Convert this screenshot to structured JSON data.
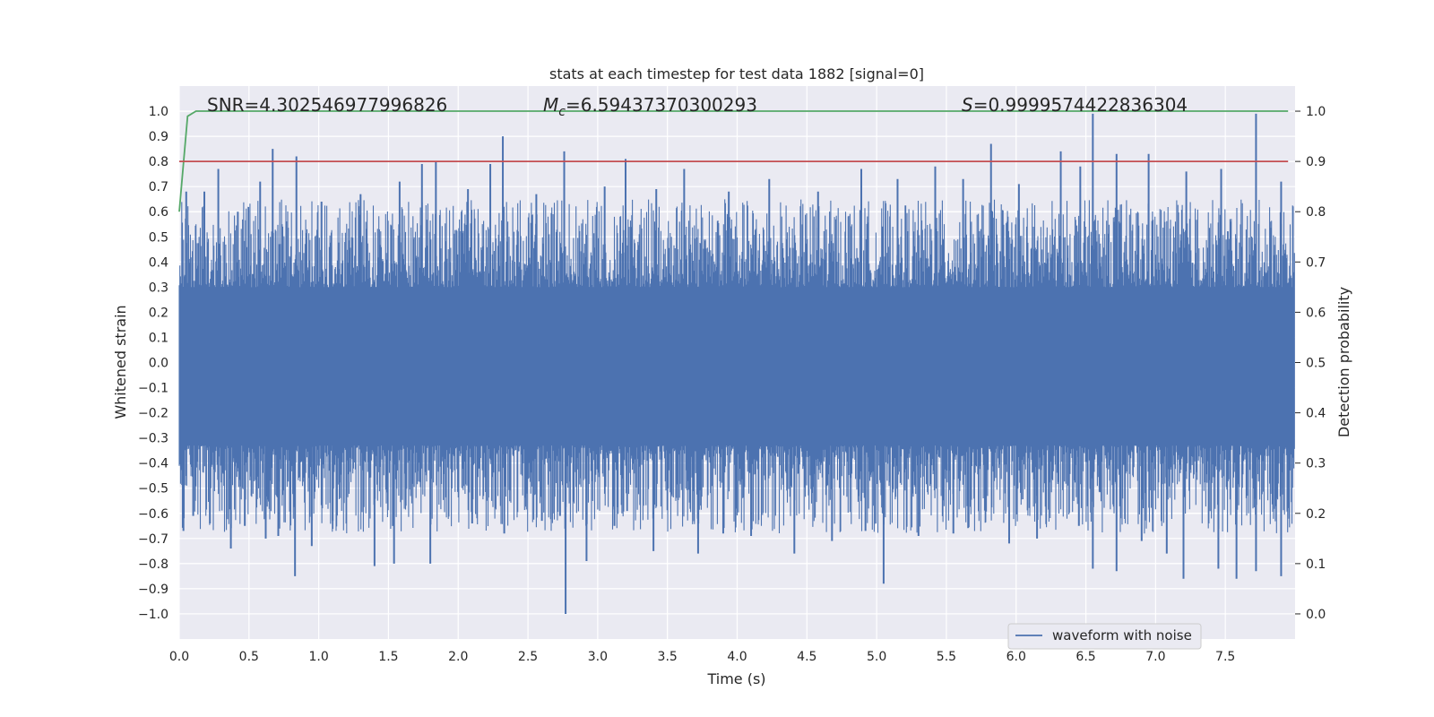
{
  "chart_data": {
    "type": "line",
    "title": "stats at each timestep for test data 1882 [signal=0]",
    "xlabel": "Time (s)",
    "ylabel_left": "Whitened strain",
    "ylabel_right": "Detection probability",
    "xlim": [
      0.0,
      8.0
    ],
    "ylim_left": [
      -1.1,
      1.1
    ],
    "ylim_right": [
      -0.05,
      1.05
    ],
    "x_ticks": [
      "0.0",
      "0.5",
      "1.0",
      "1.5",
      "2.0",
      "2.5",
      "3.0",
      "3.5",
      "4.0",
      "4.5",
      "5.0",
      "5.5",
      "6.0",
      "6.5",
      "7.0",
      "7.5"
    ],
    "y_left_ticks": [
      "1.0",
      "0.9",
      "0.8",
      "0.7",
      "0.6",
      "0.5",
      "0.4",
      "0.3",
      "0.2",
      "0.1",
      "0.0",
      "−0.1",
      "−0.2",
      "−0.3",
      "−0.4",
      "−0.5",
      "−0.6",
      "−0.7",
      "−0.8",
      "−0.9",
      "−1.0"
    ],
    "y_right_ticks": [
      "1.0",
      "0.9",
      "0.8",
      "0.7",
      "0.6",
      "0.5",
      "0.4",
      "0.3",
      "0.2",
      "0.1",
      "0.0"
    ],
    "grid": true,
    "legend_placement": "lower-right",
    "annotations": {
      "snr": "SNR=4.302546977996826",
      "mc_symbol": "M",
      "mc_sub": "c",
      "mc_value": "=6.59437370300293",
      "s_symbol": "S",
      "s_value": "=0.9999574422836304"
    },
    "series": [
      {
        "name": "waveform with noise",
        "axis": "left",
        "color": "#4c72b0",
        "kind": "noise",
        "approx_envelope": [
          -0.48,
          0.45
        ],
        "duration": 8.0
      },
      {
        "axis": "right",
        "color": "#55a868",
        "x": [
          0.0,
          0.06,
          0.12,
          7.95
        ],
        "values": [
          0.8,
          0.99,
          1.0,
          1.0
        ]
      },
      {
        "axis": "right",
        "color": "#c44e52",
        "x": [
          0.0,
          7.95
        ],
        "values": [
          0.9,
          0.9
        ]
      }
    ],
    "noise_spikes_up": [
      [
        0.05,
        0.68
      ],
      [
        0.18,
        0.68
      ],
      [
        0.28,
        0.77
      ],
      [
        0.42,
        0.6
      ],
      [
        0.58,
        0.72
      ],
      [
        0.67,
        0.85
      ],
      [
        0.84,
        0.82
      ],
      [
        1.02,
        0.64
      ],
      [
        1.3,
        0.67
      ],
      [
        1.58,
        0.72
      ],
      [
        1.74,
        0.79
      ],
      [
        1.84,
        0.8
      ],
      [
        2.07,
        0.69
      ],
      [
        2.23,
        0.79
      ],
      [
        2.32,
        0.9
      ],
      [
        2.56,
        0.67
      ],
      [
        2.76,
        0.84
      ],
      [
        3.05,
        0.7
      ],
      [
        3.2,
        0.81
      ],
      [
        3.42,
        0.69
      ],
      [
        3.62,
        0.77
      ],
      [
        3.94,
        0.68
      ],
      [
        4.23,
        0.73
      ],
      [
        4.58,
        0.68
      ],
      [
        4.89,
        0.77
      ],
      [
        5.15,
        0.73
      ],
      [
        5.42,
        0.78
      ],
      [
        5.62,
        0.73
      ],
      [
        5.82,
        0.87
      ],
      [
        6.02,
        0.71
      ],
      [
        6.32,
        0.84
      ],
      [
        6.46,
        0.78
      ],
      [
        6.55,
        0.99
      ],
      [
        6.72,
        0.83
      ],
      [
        6.95,
        0.83
      ],
      [
        7.22,
        0.76
      ],
      [
        7.47,
        0.77
      ],
      [
        7.72,
        0.99
      ],
      [
        7.9,
        0.72
      ]
    ],
    "noise_spikes_down": [
      [
        0.03,
        -0.67
      ],
      [
        0.1,
        -0.61
      ],
      [
        0.22,
        -0.64
      ],
      [
        0.37,
        -0.74
      ],
      [
        0.47,
        -0.65
      ],
      [
        0.62,
        -0.7
      ],
      [
        0.71,
        -0.69
      ],
      [
        0.83,
        -0.85
      ],
      [
        0.95,
        -0.73
      ],
      [
        1.1,
        -0.63
      ],
      [
        1.4,
        -0.81
      ],
      [
        1.54,
        -0.8
      ],
      [
        1.8,
        -0.8
      ],
      [
        2.1,
        -0.64
      ],
      [
        2.33,
        -0.68
      ],
      [
        2.6,
        -0.63
      ],
      [
        2.73,
        -0.61
      ],
      [
        2.77,
        -1.0
      ],
      [
        2.92,
        -0.79
      ],
      [
        3.12,
        -0.65
      ],
      [
        3.4,
        -0.75
      ],
      [
        3.72,
        -0.76
      ],
      [
        3.9,
        -0.68
      ],
      [
        4.1,
        -0.69
      ],
      [
        4.41,
        -0.76
      ],
      [
        4.68,
        -0.71
      ],
      [
        4.92,
        -0.67
      ],
      [
        5.05,
        -0.88
      ],
      [
        5.3,
        -0.69
      ],
      [
        5.55,
        -0.68
      ],
      [
        5.95,
        -0.72
      ],
      [
        6.15,
        -0.7
      ],
      [
        6.45,
        -0.65
      ],
      [
        6.55,
        -0.82
      ],
      [
        6.72,
        -0.83
      ],
      [
        6.9,
        -0.71
      ],
      [
        7.08,
        -0.76
      ],
      [
        7.2,
        -0.86
      ],
      [
        7.45,
        -0.82
      ],
      [
        7.58,
        -0.86
      ],
      [
        7.72,
        -0.83
      ],
      [
        7.9,
        -0.85
      ]
    ]
  }
}
